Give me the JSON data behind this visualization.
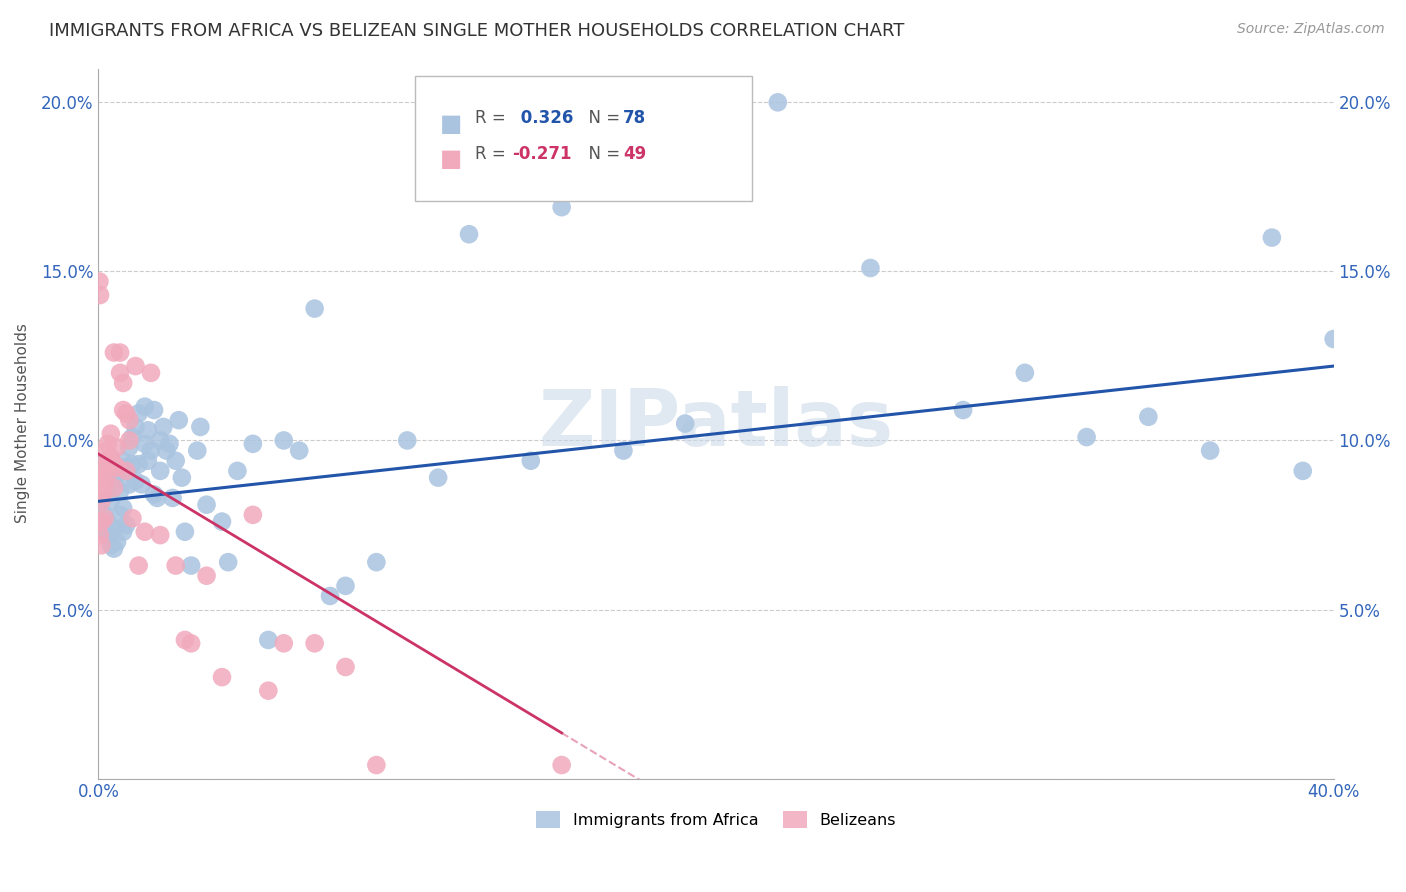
{
  "title": "IMMIGRANTS FROM AFRICA VS BELIZEAN SINGLE MOTHER HOUSEHOLDS CORRELATION CHART",
  "source": "Source: ZipAtlas.com",
  "ylabel": "Single Mother Households",
  "xlim": [
    0.0,
    0.4
  ],
  "ylim": [
    0.0,
    0.21
  ],
  "xtick_vals": [
    0.0,
    0.05,
    0.1,
    0.15,
    0.2,
    0.25,
    0.3,
    0.35,
    0.4
  ],
  "xtick_labels": [
    "0.0%",
    "",
    "",
    "",
    "",
    "",
    "",
    "",
    "40.0%"
  ],
  "ytick_vals": [
    0.0,
    0.05,
    0.1,
    0.15,
    0.2
  ],
  "ytick_labels": [
    "",
    "5.0%",
    "10.0%",
    "15.0%",
    "20.0%"
  ],
  "blue_color": "#aac4e0",
  "pink_color": "#f0aabc",
  "blue_line_color": "#2255aa",
  "pink_line_color": "#cc3366",
  "watermark": "ZIPatlas",
  "blue_line_intercept": 0.082,
  "blue_line_slope": 0.1,
  "pink_line_intercept": 0.096,
  "pink_line_slope": -0.55,
  "blue_points_x": [
    0.001,
    0.002,
    0.002,
    0.003,
    0.003,
    0.004,
    0.004,
    0.005,
    0.005,
    0.005,
    0.006,
    0.006,
    0.007,
    0.007,
    0.008,
    0.008,
    0.008,
    0.009,
    0.009,
    0.01,
    0.01,
    0.011,
    0.011,
    0.012,
    0.012,
    0.013,
    0.013,
    0.014,
    0.015,
    0.015,
    0.016,
    0.016,
    0.017,
    0.018,
    0.018,
    0.019,
    0.02,
    0.02,
    0.021,
    0.022,
    0.023,
    0.024,
    0.025,
    0.026,
    0.027,
    0.028,
    0.03,
    0.032,
    0.033,
    0.035,
    0.04,
    0.042,
    0.045,
    0.05,
    0.055,
    0.06,
    0.065,
    0.07,
    0.075,
    0.08,
    0.09,
    0.1,
    0.11,
    0.12,
    0.14,
    0.15,
    0.17,
    0.19,
    0.22,
    0.25,
    0.28,
    0.3,
    0.32,
    0.34,
    0.36,
    0.38,
    0.39,
    0.4
  ],
  "blue_points_y": [
    0.082,
    0.073,
    0.078,
    0.076,
    0.072,
    0.082,
    0.069,
    0.088,
    0.074,
    0.068,
    0.09,
    0.07,
    0.085,
    0.078,
    0.094,
    0.08,
    0.073,
    0.092,
    0.075,
    0.098,
    0.087,
    0.101,
    0.093,
    0.104,
    0.088,
    0.108,
    0.093,
    0.087,
    0.11,
    0.099,
    0.103,
    0.094,
    0.097,
    0.109,
    0.084,
    0.083,
    0.1,
    0.091,
    0.104,
    0.097,
    0.099,
    0.083,
    0.094,
    0.106,
    0.089,
    0.073,
    0.063,
    0.097,
    0.104,
    0.081,
    0.076,
    0.064,
    0.091,
    0.099,
    0.041,
    0.1,
    0.097,
    0.139,
    0.054,
    0.057,
    0.064,
    0.1,
    0.089,
    0.161,
    0.094,
    0.169,
    0.097,
    0.105,
    0.2,
    0.151,
    0.109,
    0.12,
    0.101,
    0.107,
    0.097,
    0.16,
    0.091,
    0.13
  ],
  "pink_points_x": [
    0.0003,
    0.0005,
    0.0005,
    0.001,
    0.001,
    0.001,
    0.0012,
    0.0015,
    0.0015,
    0.002,
    0.002,
    0.002,
    0.0025,
    0.003,
    0.003,
    0.003,
    0.004,
    0.004,
    0.005,
    0.005,
    0.005,
    0.006,
    0.006,
    0.007,
    0.007,
    0.008,
    0.008,
    0.009,
    0.009,
    0.01,
    0.01,
    0.011,
    0.012,
    0.013,
    0.015,
    0.017,
    0.02,
    0.025,
    0.028,
    0.03,
    0.035,
    0.04,
    0.05,
    0.055,
    0.06,
    0.07,
    0.08,
    0.09,
    0.15
  ],
  "pink_points_y": [
    0.147,
    0.143,
    0.072,
    0.082,
    0.076,
    0.069,
    0.089,
    0.09,
    0.084,
    0.093,
    0.087,
    0.077,
    0.097,
    0.09,
    0.094,
    0.099,
    0.102,
    0.095,
    0.093,
    0.086,
    0.126,
    0.098,
    0.092,
    0.12,
    0.126,
    0.117,
    0.109,
    0.108,
    0.091,
    0.106,
    0.1,
    0.077,
    0.122,
    0.063,
    0.073,
    0.12,
    0.072,
    0.063,
    0.041,
    0.04,
    0.06,
    0.03,
    0.078,
    0.026,
    0.04,
    0.04,
    0.033,
    0.004,
    0.004
  ]
}
